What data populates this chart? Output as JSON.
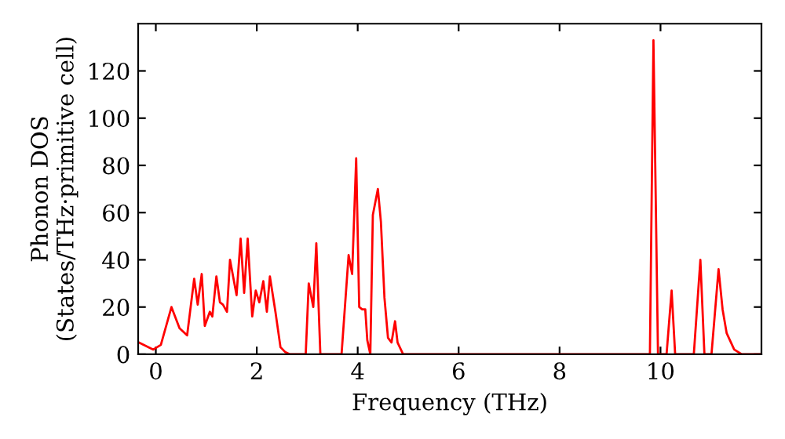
{
  "chart_data": {
    "type": "line",
    "xlabel": "Frequency (THz)",
    "ylabel": "Phonon DOS\n(States/THz·primitive cell)",
    "xlim": [
      -0.35,
      12.0
    ],
    "ylim": [
      0,
      140
    ],
    "xticks": [
      0,
      2,
      4,
      6,
      8,
      10
    ],
    "yticks": [
      0,
      20,
      40,
      60,
      80,
      100,
      120
    ],
    "grid": false,
    "legend": false,
    "series": [
      {
        "color": "#ff0000",
        "x": [
          -0.34,
          -0.05,
          0.1,
          0.31,
          0.47,
          0.62,
          0.76,
          0.83,
          0.91,
          0.97,
          1.07,
          1.12,
          1.2,
          1.27,
          1.33,
          1.41,
          1.47,
          1.6,
          1.68,
          1.75,
          1.82,
          1.91,
          1.98,
          2.05,
          2.13,
          2.2,
          2.26,
          2.37,
          2.47,
          2.56,
          2.66,
          2.97,
          3.03,
          3.12,
          3.18,
          3.26,
          3.68,
          3.82,
          3.89,
          3.97,
          4.03,
          4.09,
          4.15,
          4.19,
          4.25,
          4.3,
          4.4,
          4.46,
          4.53,
          4.6,
          4.67,
          4.74,
          4.79,
          4.9,
          9.79,
          9.86,
          9.95,
          10.12,
          10.22,
          10.29,
          10.66,
          10.79,
          10.87,
          11.01,
          11.15,
          11.23,
          11.31,
          11.46,
          11.61,
          12.0
        ],
        "values": [
          5,
          2,
          4,
          20,
          11,
          8,
          32,
          21,
          34,
          12,
          18,
          16,
          33,
          22,
          21,
          18,
          40,
          25,
          49,
          26,
          49,
          16,
          27,
          22,
          31,
          18,
          33,
          18,
          3,
          1,
          0,
          0,
          30,
          20,
          47,
          0,
          0,
          42,
          34,
          83,
          20,
          19,
          19,
          6,
          0,
          59,
          70,
          56,
          24,
          7,
          5,
          14,
          5,
          0,
          0,
          133,
          0,
          0,
          27,
          0,
          0,
          40,
          0,
          0,
          36,
          19,
          9,
          2,
          0,
          0
        ]
      }
    ]
  }
}
